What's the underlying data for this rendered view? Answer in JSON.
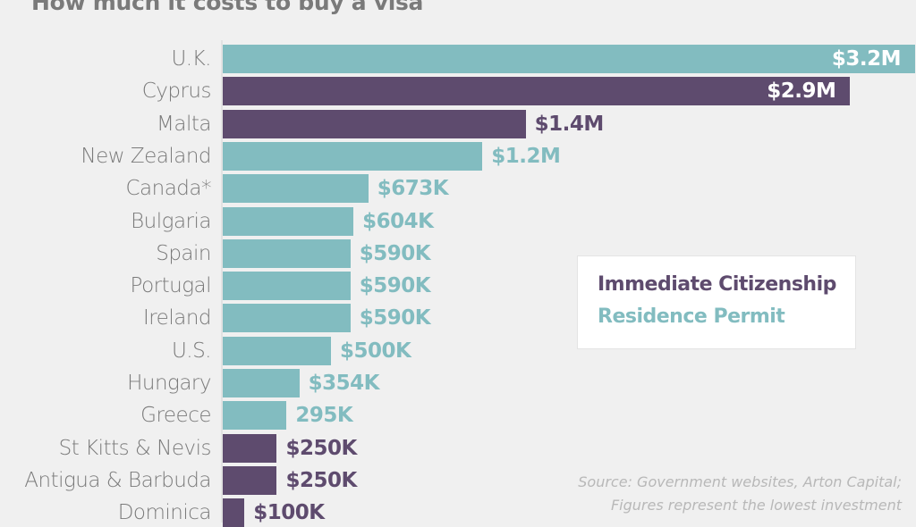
{
  "chart_data": {
    "type": "bar",
    "orientation": "horizontal",
    "title": "How much it costs to buy a visa",
    "categories": [
      "U.K.",
      "Cyprus",
      "Malta",
      "New Zealand",
      "Canada*",
      "Bulgaria",
      "Spain",
      "Portugal",
      "Ireland",
      "U.S.",
      "Hungary",
      "Greece",
      "St Kitts & Nevis",
      "Antigua & Barbuda",
      "Dominica"
    ],
    "values": [
      3200000,
      2900000,
      1400000,
      1200000,
      673000,
      604000,
      590000,
      590000,
      590000,
      500000,
      354000,
      295000,
      250000,
      250000,
      100000
    ],
    "labels": [
      "$3.2M",
      "$2.9M",
      "$1.4M",
      "$1.2M",
      "$673K",
      "$604K",
      "$590K",
      "$590K",
      "$590K",
      "$500K",
      "$354K",
      "295K",
      "$250K",
      "$250K",
      "$100K"
    ],
    "types": [
      "residence",
      "citizenship",
      "citizenship",
      "residence",
      "residence",
      "residence",
      "residence",
      "residence",
      "residence",
      "residence",
      "residence",
      "residence",
      "citizenship",
      "citizenship",
      "citizenship"
    ],
    "xlim": [
      0,
      3200000
    ],
    "grid": false,
    "legend": {
      "placement": "right",
      "entries": [
        {
          "key": "citizenship",
          "name": "Immediate Citizenship",
          "color": "#5e4b6e"
        },
        {
          "key": "residence",
          "name": "Residence Permit",
          "color": "#82bcc0"
        }
      ]
    },
    "source": [
      "Source: Government websites, Arton Capital;",
      "Figures represent the lowest investment"
    ]
  }
}
